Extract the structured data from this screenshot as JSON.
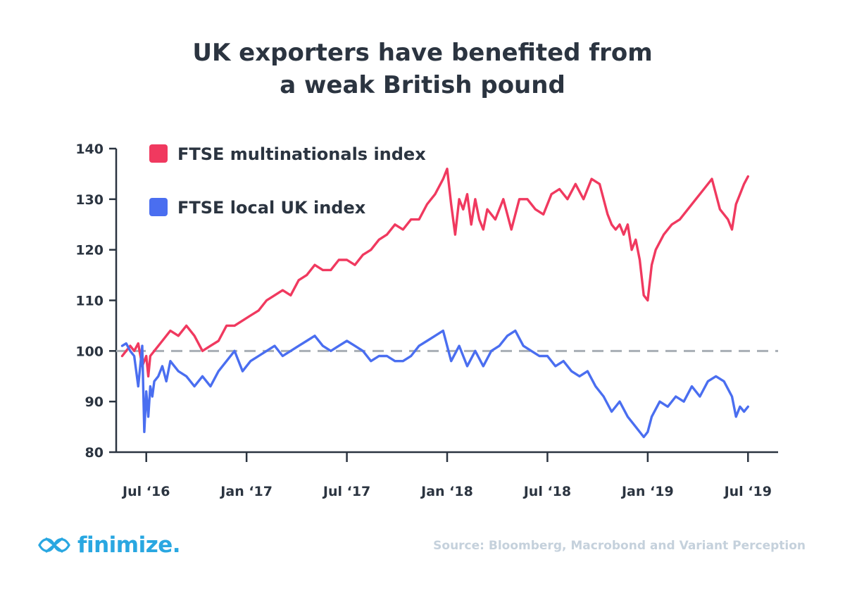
{
  "title_lines": [
    "UK exporters have benefited from",
    "a weak British pound"
  ],
  "source": "Source: Bloomberg, Macrobond and Variant Perception",
  "brand": {
    "name": "finimize.",
    "color": "#29a7e1"
  },
  "chart_data": {
    "type": "line",
    "title": "UK exporters have benefited from a weak British pound",
    "xlabel": "",
    "ylabel": "",
    "ylim": [
      80,
      140
    ],
    "xlim": [
      2016.35,
      2019.65
    ],
    "grid": false,
    "legend_position": "top-left",
    "yticks": [
      80,
      90,
      100,
      110,
      120,
      130,
      140
    ],
    "xticks": [
      {
        "label": "Jul ‘16",
        "x": 2016.5
      },
      {
        "label": "Jan ‘17",
        "x": 2017.0
      },
      {
        "label": "Jul ‘17",
        "x": 2017.5
      },
      {
        "label": "Jan ‘18",
        "x": 2018.0
      },
      {
        "label": "Jul ‘18",
        "x": 2018.5
      },
      {
        "label": "Jan ‘19",
        "x": 2019.0
      },
      {
        "label": "Jul ‘19",
        "x": 2019.5
      }
    ],
    "reference_line": {
      "y": 100,
      "color": "#a8aeb5",
      "style": "dashed"
    },
    "series": [
      {
        "name": "FTSE multinationals index",
        "color": "#f0395f",
        "x": [
          2016.38,
          2016.42,
          2016.44,
          2016.46,
          2016.48,
          2016.5,
          2016.51,
          2016.52,
          2016.54,
          2016.58,
          2016.62,
          2016.66,
          2016.7,
          2016.74,
          2016.78,
          2016.82,
          2016.86,
          2016.9,
          2016.94,
          2016.98,
          2017.02,
          2017.06,
          2017.1,
          2017.14,
          2017.18,
          2017.22,
          2017.26,
          2017.3,
          2017.34,
          2017.38,
          2017.42,
          2017.46,
          2017.5,
          2017.54,
          2017.58,
          2017.62,
          2017.66,
          2017.7,
          2017.74,
          2017.78,
          2017.82,
          2017.86,
          2017.9,
          2017.94,
          2017.98,
          2018.0,
          2018.02,
          2018.04,
          2018.06,
          2018.08,
          2018.1,
          2018.12,
          2018.14,
          2018.16,
          2018.18,
          2018.2,
          2018.24,
          2018.28,
          2018.32,
          2018.36,
          2018.4,
          2018.44,
          2018.48,
          2018.52,
          2018.56,
          2018.6,
          2018.64,
          2018.68,
          2018.72,
          2018.76,
          2018.8,
          2018.82,
          2018.84,
          2018.86,
          2018.88,
          2018.9,
          2018.92,
          2018.94,
          2018.96,
          2018.98,
          2019.0,
          2019.02,
          2019.04,
          2019.08,
          2019.12,
          2019.16,
          2019.2,
          2019.24,
          2019.28,
          2019.32,
          2019.36,
          2019.4,
          2019.42,
          2019.44,
          2019.46,
          2019.48,
          2019.5
        ],
        "values": [
          99,
          101,
          100,
          101.5,
          97,
          99,
          95,
          99,
          100,
          102,
          104,
          103,
          105,
          103,
          100,
          101,
          102,
          105,
          105,
          106,
          107,
          108,
          110,
          111,
          112,
          111,
          114,
          115,
          117,
          116,
          116,
          118,
          118,
          117,
          119,
          120,
          122,
          123,
          125,
          124,
          126,
          126,
          129,
          131,
          134,
          136,
          129,
          123,
          130,
          128,
          131,
          125,
          130,
          126,
          124,
          128,
          126,
          130,
          124,
          130,
          130,
          128,
          127,
          131,
          132,
          130,
          133,
          130,
          134,
          133,
          127,
          125,
          124,
          125,
          123,
          125,
          120,
          122,
          118,
          111,
          110,
          117,
          120,
          123,
          125,
          126,
          128,
          130,
          132,
          134,
          128,
          126,
          124,
          129,
          131,
          133,
          134.5
        ]
      },
      {
        "name": "FTSE local UK index",
        "color": "#4a6ef0",
        "x": [
          2016.38,
          2016.4,
          2016.42,
          2016.44,
          2016.46,
          2016.48,
          2016.49,
          2016.5,
          2016.51,
          2016.52,
          2016.53,
          2016.54,
          2016.56,
          2016.58,
          2016.6,
          2016.62,
          2016.64,
          2016.66,
          2016.7,
          2016.74,
          2016.78,
          2016.82,
          2016.86,
          2016.9,
          2016.94,
          2016.98,
          2017.02,
          2017.06,
          2017.1,
          2017.14,
          2017.18,
          2017.22,
          2017.26,
          2017.3,
          2017.34,
          2017.38,
          2017.42,
          2017.46,
          2017.5,
          2017.54,
          2017.58,
          2017.62,
          2017.66,
          2017.7,
          2017.74,
          2017.78,
          2017.82,
          2017.86,
          2017.9,
          2017.94,
          2017.98,
          2018.02,
          2018.06,
          2018.1,
          2018.14,
          2018.18,
          2018.22,
          2018.26,
          2018.3,
          2018.34,
          2018.38,
          2018.42,
          2018.46,
          2018.5,
          2018.54,
          2018.58,
          2018.62,
          2018.66,
          2018.7,
          2018.74,
          2018.78,
          2018.82,
          2018.86,
          2018.9,
          2018.94,
          2018.98,
          2019.0,
          2019.02,
          2019.06,
          2019.1,
          2019.14,
          2019.18,
          2019.22,
          2019.26,
          2019.3,
          2019.34,
          2019.38,
          2019.42,
          2019.44,
          2019.46,
          2019.48,
          2019.5
        ],
        "values": [
          101,
          101.5,
          100,
          99,
          93,
          101,
          84,
          92,
          87,
          93,
          91,
          94,
          95,
          97,
          94,
          98,
          97,
          96,
          95,
          93,
          95,
          93,
          96,
          98,
          100,
          96,
          98,
          99,
          100,
          101,
          99,
          100,
          101,
          102,
          103,
          101,
          100,
          101,
          102,
          101,
          100,
          98,
          99,
          99,
          98,
          98,
          99,
          101,
          102,
          103,
          104,
          98,
          101,
          97,
          100,
          97,
          100,
          101,
          103,
          104,
          101,
          100,
          99,
          99,
          97,
          98,
          96,
          95,
          96,
          93,
          91,
          88,
          90,
          87,
          85,
          83,
          84,
          87,
          90,
          89,
          91,
          90,
          93,
          91,
          94,
          95,
          94,
          91,
          87,
          89,
          88,
          89
        ]
      }
    ]
  }
}
